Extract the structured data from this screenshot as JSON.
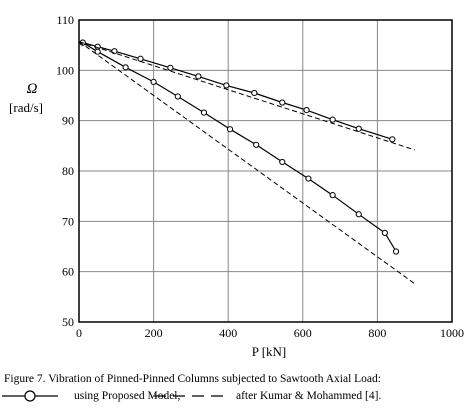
{
  "chart_data": {
    "type": "line",
    "xlabel": "P [kN]",
    "ylabel": "Ω",
    "ylabel_unit": "[rad/s]",
    "xlim": [
      0,
      1000
    ],
    "ylim": [
      50,
      110
    ],
    "x_ticks": [
      0,
      200,
      400,
      600,
      800,
      1000
    ],
    "y_ticks": [
      50,
      60,
      70,
      80,
      90,
      100,
      110
    ],
    "grid": true,
    "series": [
      {
        "style": "solid-with-circles",
        "x": [
          10,
          50,
          95,
          165,
          245,
          320,
          395,
          470,
          545,
          610,
          680,
          750,
          840
        ],
        "y": [
          105.5,
          104.7,
          103.8,
          102.3,
          100.5,
          98.8,
          97.0,
          95.5,
          93.6,
          92.1,
          90.2,
          88.4,
          86.3
        ]
      },
      {
        "style": "solid-with-circles",
        "x": [
          10,
          50,
          125,
          200,
          265,
          335,
          405,
          475,
          545,
          615,
          680,
          750,
          820,
          850
        ],
        "y": [
          105.5,
          103.7,
          100.6,
          97.7,
          94.8,
          91.6,
          88.3,
          85.2,
          81.8,
          78.5,
          75.2,
          71.4,
          67.7,
          64.0
        ]
      },
      {
        "style": "dashed",
        "x": [
          0,
          900
        ],
        "y": [
          105.7,
          84.2
        ]
      },
      {
        "style": "dashed",
        "x": [
          0,
          900
        ],
        "y": [
          105.7,
          57.6
        ]
      }
    ]
  },
  "caption": "Figure 7. Vibration of Pinned-Pinned Columns subjected to Sawtooth Axial Load:",
  "legend": {
    "proposed_label": "using Proposed Model,",
    "reference_label": "after Kumar & Mohammed [4]."
  }
}
